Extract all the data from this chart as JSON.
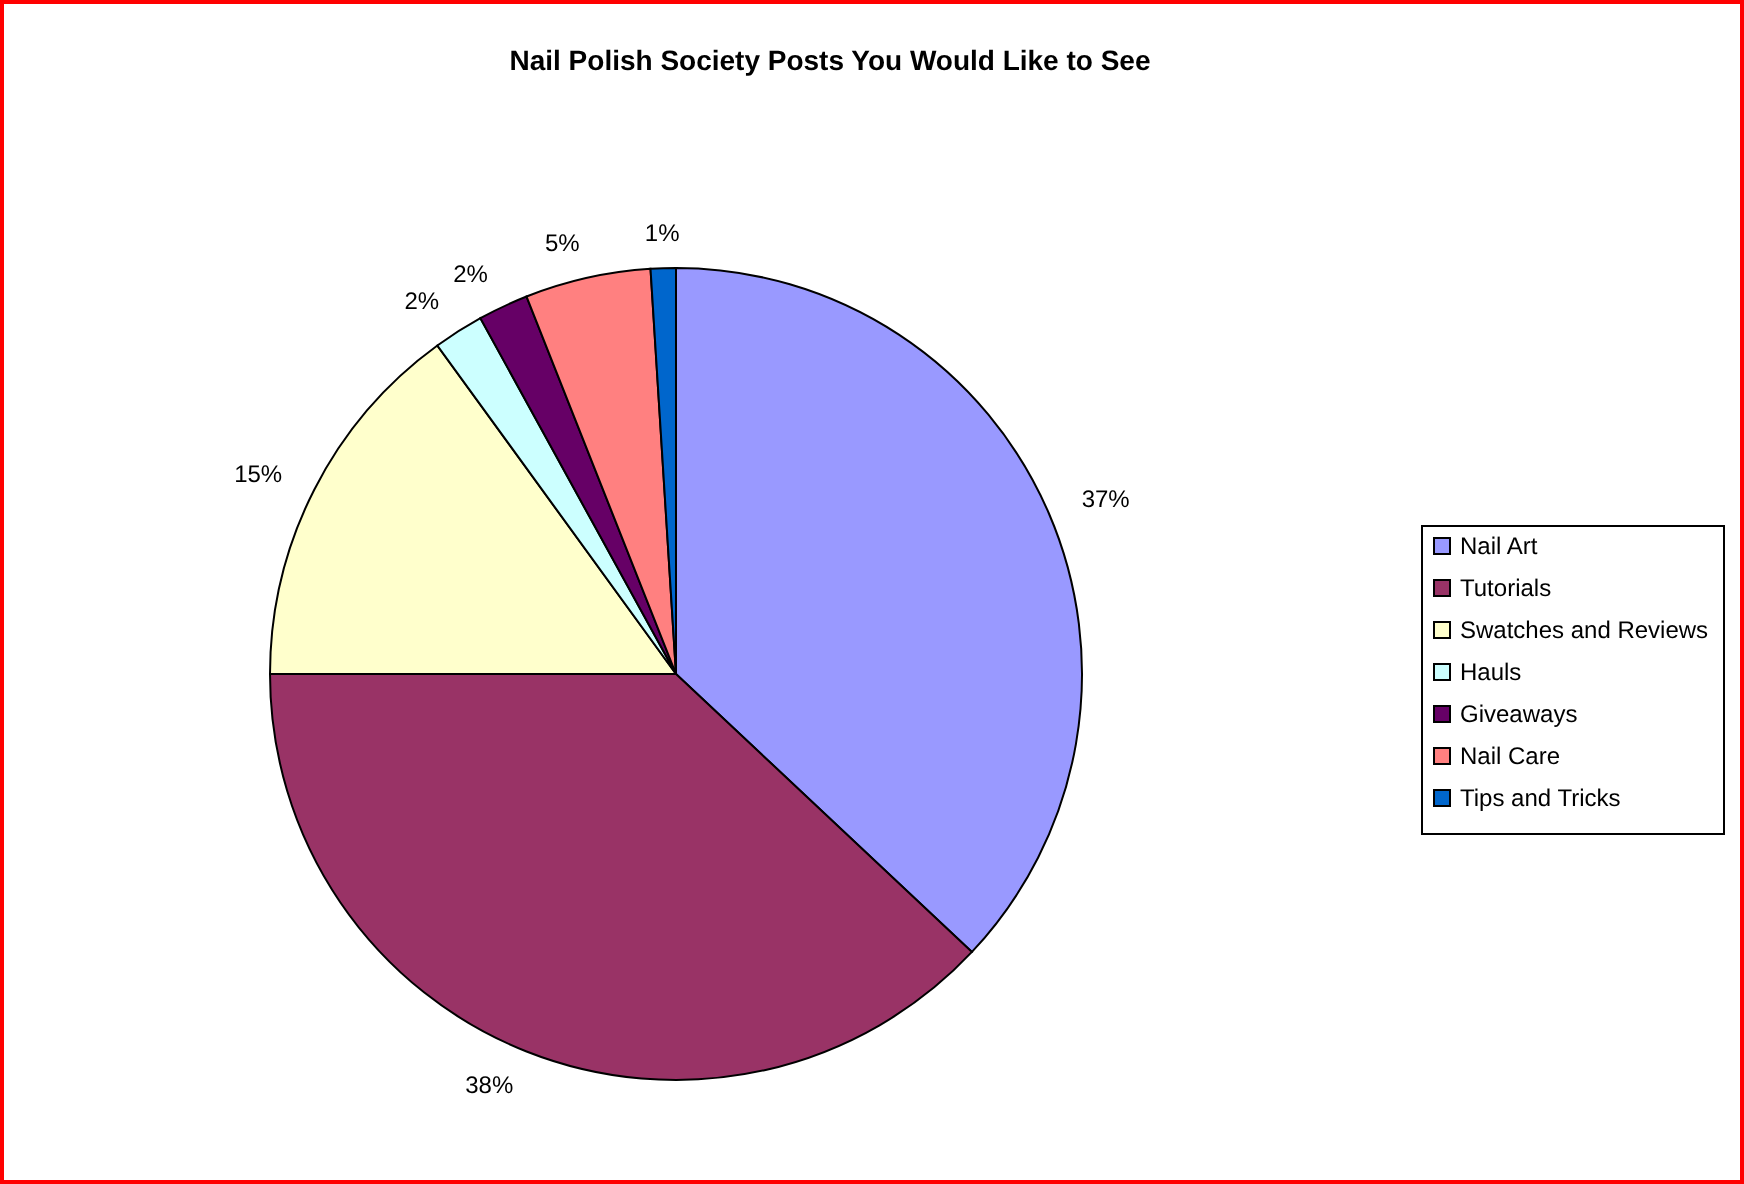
{
  "chart_data": {
    "type": "pie",
    "title": "Nail Polish Society Posts You Would Like to See",
    "categories": [
      "Nail Art",
      "Tutorials",
      "Swatches and Reviews",
      "Hauls",
      "Giveaways",
      "Nail Care",
      "Tips and Tricks"
    ],
    "values": [
      37,
      38,
      15,
      2,
      2,
      5,
      1
    ],
    "colors": [
      "#9999ff",
      "#993366",
      "#ffffcc",
      "#ccffff",
      "#660066",
      "#ff8080",
      "#0066cc"
    ],
    "value_labels": [
      "37%",
      "38%",
      "15%",
      "2%",
      "2%",
      "5%",
      "1%"
    ],
    "legend": "right"
  }
}
